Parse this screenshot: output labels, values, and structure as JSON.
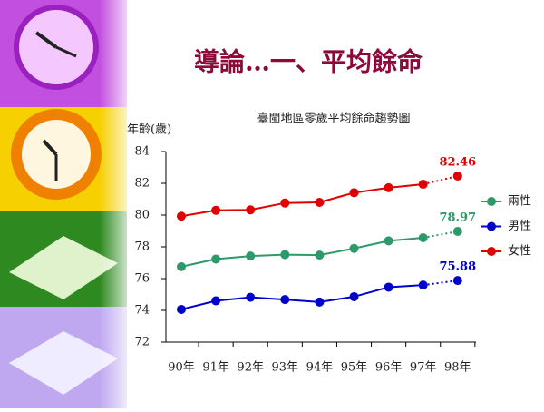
{
  "slide_title": "導論…一、平均餘命",
  "chart_data": {
    "type": "line",
    "title": "臺閩地區零歲平均餘命趨勢圖",
    "y_label": "年齡(歲)",
    "categories": [
      "90年",
      "91年",
      "92年",
      "93年",
      "94年",
      "95年",
      "96年",
      "97年",
      "98年"
    ],
    "series": [
      {
        "name": "兩性",
        "color": "#2e9a6a",
        "values": [
          76.75,
          77.23,
          77.42,
          77.51,
          77.48,
          77.9,
          78.38,
          78.57,
          78.97
        ]
      },
      {
        "name": "男性",
        "color": "#0000cc",
        "values": [
          74.06,
          74.6,
          74.82,
          74.68,
          74.52,
          74.86,
          75.46,
          75.59,
          75.88
        ]
      },
      {
        "name": "女性",
        "color": "#e00000",
        "values": [
          79.93,
          80.3,
          80.33,
          80.76,
          80.8,
          81.41,
          81.72,
          81.94,
          82.46
        ]
      }
    ],
    "ylim": [
      72,
      84
    ],
    "yticks": [
      72,
      74,
      76,
      78,
      80,
      82,
      84
    ],
    "legend": "right"
  }
}
